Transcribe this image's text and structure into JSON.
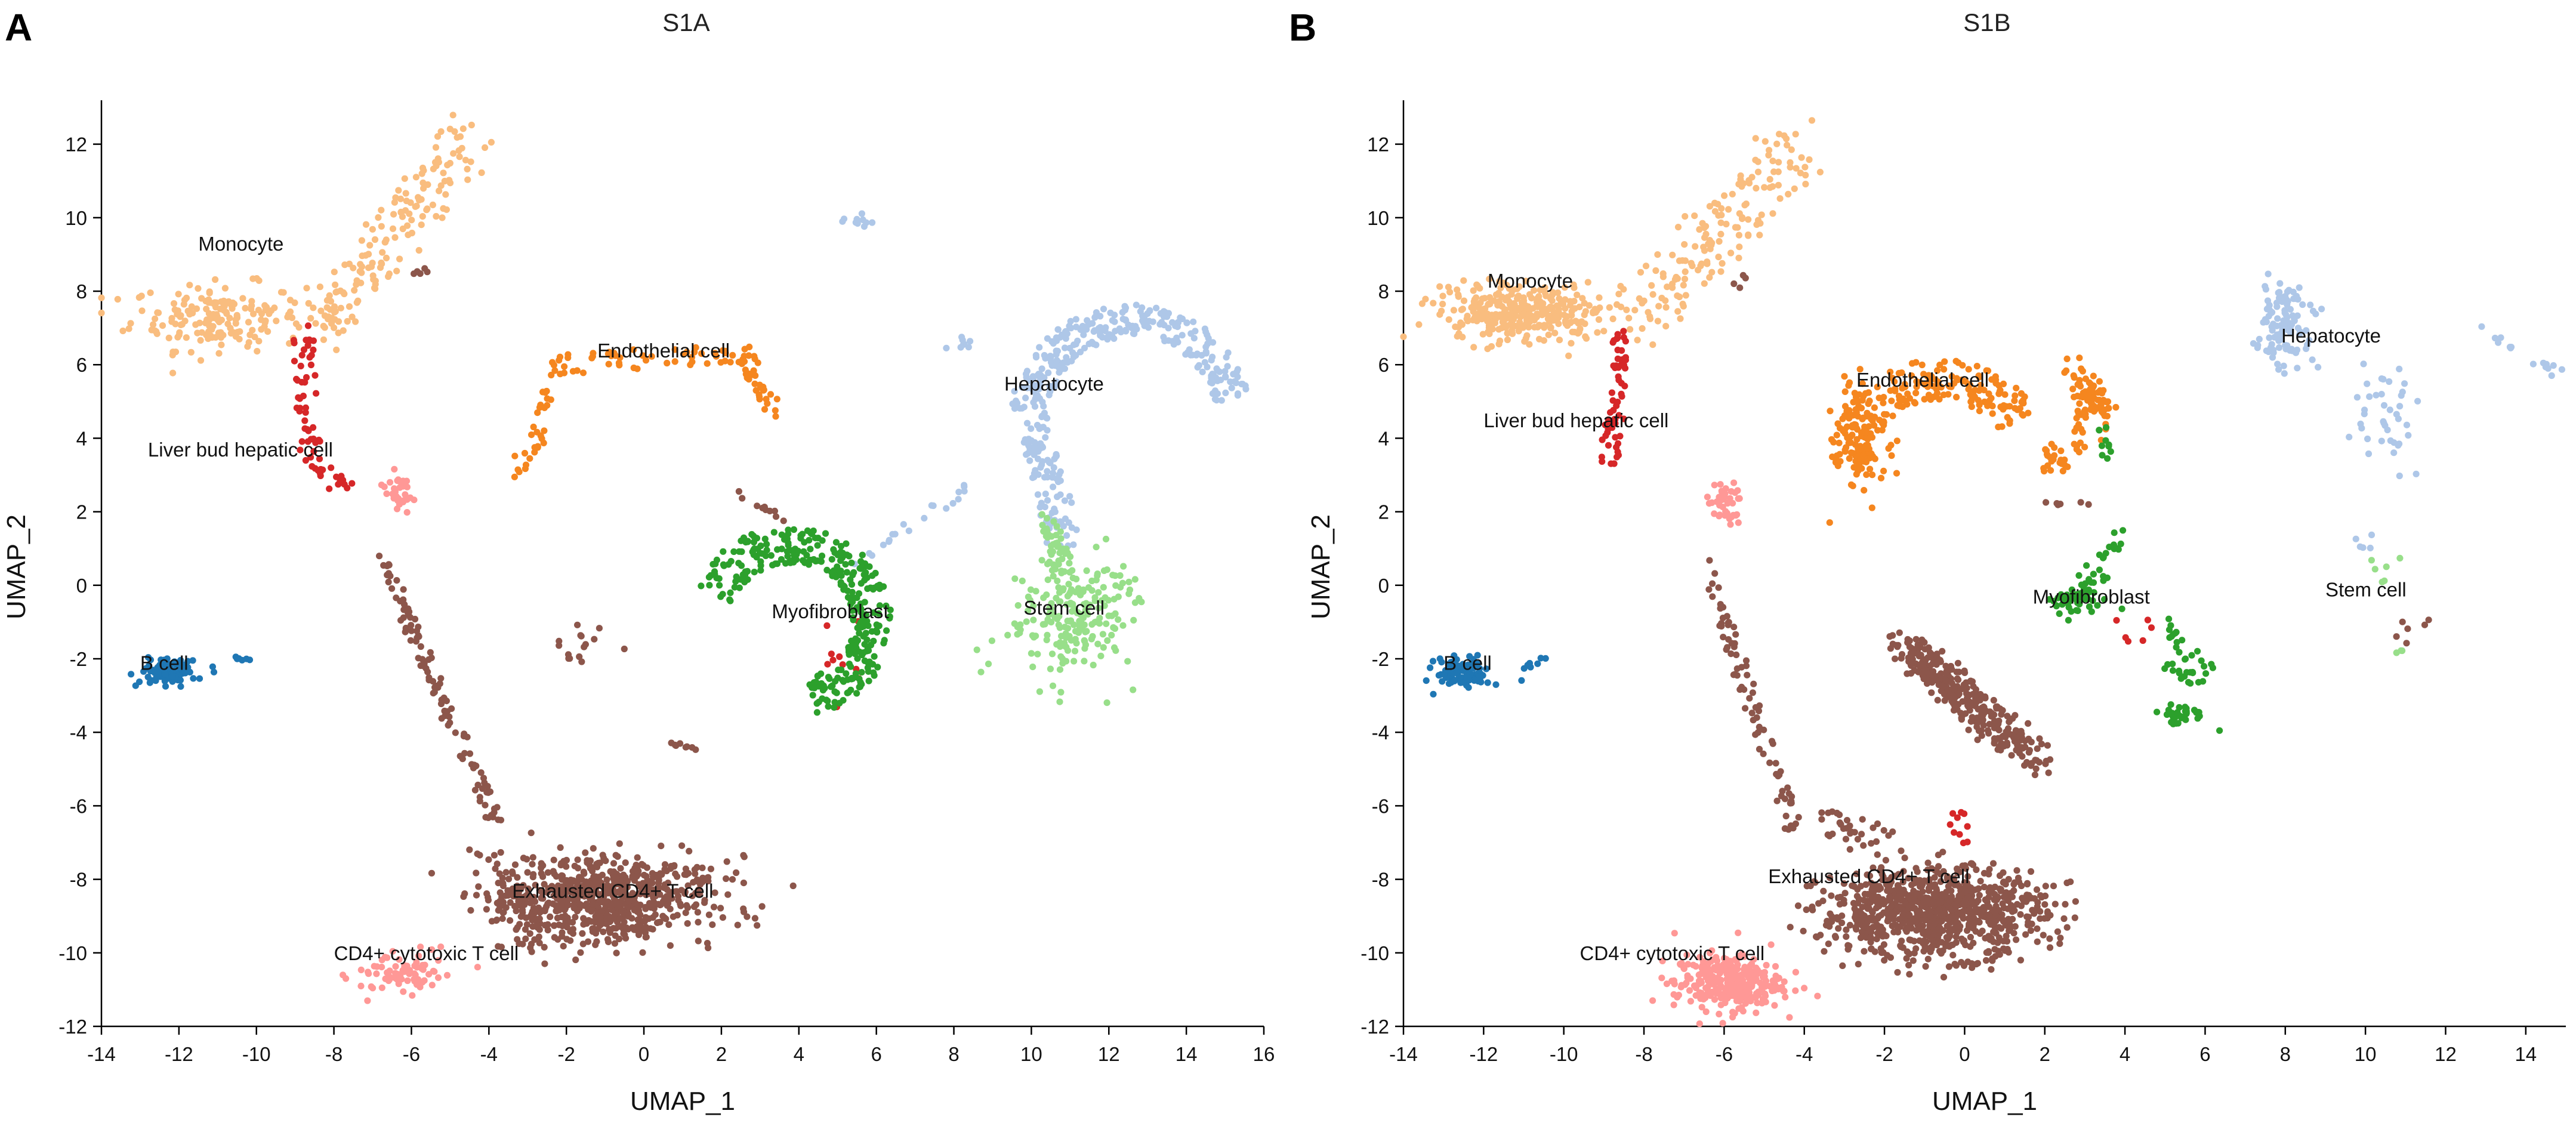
{
  "colors": {
    "Monocyte": "#f9bd7f",
    "Liver bud hepatic cell": "#d62728",
    "Endothelial cell": "#f5861f",
    "Hepatocyte": "#aec7e8",
    "Stem cell": "#98df8a",
    "Myofibroblast": "#2ca02c",
    "B cell": "#1f77b4",
    "Exhausted CD4+ T cell": "#8c564b",
    "CD4+ cytotoxic T cell": "#ff9896"
  },
  "chart_data": [
    {
      "id": "S1A",
      "panel_letter": "A",
      "type": "scatter",
      "title": "S1A",
      "xlabel": "UMAP_1",
      "ylabel": "UMAP_2",
      "xlim": [
        -14,
        16
      ],
      "ylim": [
        -12,
        13
      ],
      "xticks": [
        -14,
        -12,
        -10,
        -8,
        -6,
        -4,
        -2,
        0,
        2,
        4,
        6,
        8,
        10,
        12,
        14,
        16
      ],
      "yticks": [
        -12,
        -10,
        -8,
        -6,
        -4,
        -2,
        0,
        2,
        4,
        6,
        8,
        10,
        12
      ],
      "clusters": [
        {
          "name": "Monocyte",
          "label": "Monocyte",
          "label_xy": [
            -11.5,
            9.1
          ],
          "n": 340,
          "shapes": [
            {
              "kind": "line",
              "from": [
                -4.4,
                12.2
              ],
              "to": [
                -8.4,
                7.0
              ],
              "w": 0.8,
              "n": 160
            },
            {
              "kind": "blob",
              "cx": -11.0,
              "cy": 7.3,
              "sx": 1.5,
              "sy": 0.6,
              "n": 180
            }
          ]
        },
        {
          "name": "Liver bud hepatic cell",
          "label": "Liver bud hepatic cell",
          "label_xy": [
            -12.8,
            3.5
          ],
          "n": 75,
          "shapes": [
            {
              "kind": "line",
              "from": [
                -8.8,
                7.0
              ],
              "to": [
                -8.6,
                3.5
              ],
              "w": 0.35,
              "n": 45
            },
            {
              "kind": "line",
              "from": [
                -8.8,
                3.5
              ],
              "to": [
                -7.5,
                2.5
              ],
              "w": 0.3,
              "n": 20
            },
            {
              "kind": "blob",
              "cx": 5.0,
              "cy": -2.2,
              "sx": 0.5,
              "sy": 0.9,
              "n": 10
            }
          ]
        },
        {
          "name": "Endothelial cell",
          "label": "Endothelial cell",
          "label_xy": [
            -1.2,
            6.2
          ],
          "n": 120,
          "shapes": [
            {
              "kind": "line",
              "from": [
                -3.2,
                3.0
              ],
              "to": [
                -2.2,
                5.9
              ],
              "w": 0.3,
              "n": 35
            },
            {
              "kind": "line",
              "from": [
                -2.2,
                6.0
              ],
              "to": [
                2.6,
                6.3
              ],
              "w": 0.35,
              "n": 50
            },
            {
              "kind": "line",
              "from": [
                2.6,
                6.3
              ],
              "to": [
                3.3,
                4.8
              ],
              "w": 0.3,
              "n": 35
            }
          ]
        },
        {
          "name": "Hepatocyte",
          "label": "Hepatocyte",
          "label_xy": [
            9.3,
            5.3
          ],
          "n": 430,
          "shapes": [
            {
              "kind": "arc",
              "cx": 12.6,
              "cy": 4.6,
              "r": 2.6,
              "a0": 10,
              "a1": 165,
              "w": 0.45,
              "n": 260
            },
            {
              "kind": "line",
              "from": [
                9.8,
                5.2
              ],
              "to": [
                10.8,
                1.3
              ],
              "w": 0.55,
              "n": 120
            },
            {
              "kind": "line",
              "from": [
                8.3,
                2.6
              ],
              "to": [
                5.5,
                0.6
              ],
              "w": 0.18,
              "n": 20
            },
            {
              "kind": "blob",
              "cx": 5.5,
              "cy": 9.9,
              "sx": 0.25,
              "sy": 0.15,
              "n": 12
            },
            {
              "kind": "blob",
              "cx": 8.5,
              "cy": 6.6,
              "sx": 0.5,
              "sy": 0.2,
              "n": 8
            }
          ]
        },
        {
          "name": "Stem cell",
          "label": "Stem cell",
          "label_xy": [
            9.8,
            -0.8
          ],
          "n": 250,
          "shapes": [
            {
              "kind": "blob",
              "cx": 11.0,
              "cy": -0.8,
              "sx": 0.95,
              "sy": 1.15,
              "n": 200
            },
            {
              "kind": "line",
              "from": [
                10.5,
                1.8
              ],
              "to": [
                10.8,
                0.3
              ],
              "w": 0.35,
              "n": 40
            },
            {
              "kind": "line",
              "from": [
                11.8,
                0.5
              ],
              "to": [
                13.0,
                -0.6
              ],
              "w": 0.25,
              "n": 10
            }
          ]
        },
        {
          "name": "Myofibroblast",
          "label": "Myofibroblast",
          "label_xy": [
            3.3,
            -0.9
          ],
          "n": 330,
          "shapes": [
            {
              "kind": "arc",
              "cx": 3.8,
              "cy": -1.0,
              "r": 2.1,
              "a0": -75,
              "a1": 160,
              "w": 0.5,
              "n": 330
            }
          ]
        },
        {
          "name": "B cell",
          "label": "B cell",
          "label_xy": [
            -13.0,
            -2.3
          ],
          "n": 110,
          "shapes": [
            {
              "kind": "blob",
              "cx": -12.3,
              "cy": -2.35,
              "sx": 0.48,
              "sy": 0.25,
              "n": 100
            },
            {
              "kind": "blob",
              "cx": -10.3,
              "cy": -2.0,
              "sx": 0.2,
              "sy": 0.06,
              "n": 6
            }
          ]
        },
        {
          "name": "Exhausted CD4+ T cell",
          "label": "Exhausted CD4+ T cell",
          "label_xy": [
            -3.4,
            -8.5
          ],
          "n": 900,
          "shapes": [
            {
              "kind": "blob",
              "cx": -1.0,
              "cy": -8.5,
              "sx": 1.9,
              "sy": 0.75,
              "n": 680
            },
            {
              "kind": "line",
              "from": [
                -6.8,
                0.8
              ],
              "to": [
                -3.8,
                -6.5
              ],
              "w": 0.22,
              "n": 110
            },
            {
              "kind": "line",
              "from": [
                -4.3,
                -7.0
              ],
              "to": [
                -2.6,
                -10.0
              ],
              "w": 0.6,
              "n": 50
            },
            {
              "kind": "blob",
              "cx": -1.6,
              "cy": -1.6,
              "sx": 0.6,
              "sy": 0.4,
              "n": 15
            },
            {
              "kind": "line",
              "from": [
                0.5,
                -4.2
              ],
              "to": [
                1.6,
                -4.5
              ],
              "w": 0.15,
              "n": 8
            },
            {
              "kind": "line",
              "from": [
                2.4,
                2.5
              ],
              "to": [
                3.6,
                1.8
              ],
              "w": 0.12,
              "n": 10
            },
            {
              "kind": "blob",
              "cx": -5.8,
              "cy": 8.5,
              "sx": 0.15,
              "sy": 0.15,
              "n": 5
            }
          ]
        },
        {
          "name": "CD4+ cytotoxic T cell",
          "label": "CD4+ cytotoxic T cell",
          "label_xy": [
            -8.0,
            -10.2
          ],
          "n": 110,
          "shapes": [
            {
              "kind": "blob",
              "cx": -6.3,
              "cy": -10.6,
              "sx": 0.7,
              "sy": 0.35,
              "n": 75
            },
            {
              "kind": "blob",
              "cx": -6.3,
              "cy": 2.5,
              "sx": 0.25,
              "sy": 0.35,
              "n": 35
            }
          ]
        }
      ]
    },
    {
      "id": "S1B",
      "panel_letter": "B",
      "type": "scatter",
      "title": "S1B",
      "xlabel": "UMAP_1",
      "ylabel": "UMAP_2",
      "xlim": [
        -14,
        15
      ],
      "ylim": [
        -12,
        13
      ],
      "xticks": [
        -14,
        -12,
        -10,
        -8,
        -6,
        -4,
        -2,
        0,
        2,
        4,
        6,
        8,
        10,
        12,
        14
      ],
      "yticks": [
        -12,
        -10,
        -8,
        -6,
        -4,
        -2,
        0,
        2,
        4,
        6,
        8,
        10,
        12
      ],
      "clusters": [
        {
          "name": "Monocyte",
          "label": "Monocyte",
          "label_xy": [
            -11.9,
            8.1
          ],
          "n": 500,
          "shapes": [
            {
              "kind": "line",
              "from": [
                -4.0,
                12.1
              ],
              "to": [
                -8.4,
                7.2
              ],
              "w": 0.85,
              "n": 160
            },
            {
              "kind": "blob",
              "cx": -11.0,
              "cy": 7.4,
              "sx": 1.35,
              "sy": 0.5,
              "n": 340
            }
          ]
        },
        {
          "name": "Liver bud hepatic cell",
          "label": "Liver bud hepatic cell",
          "label_xy": [
            -12.0,
            4.3
          ],
          "n": 80,
          "shapes": [
            {
              "kind": "line",
              "from": [
                -8.5,
                7.0
              ],
              "to": [
                -8.9,
                3.0
              ],
              "w": 0.3,
              "n": 60
            },
            {
              "kind": "blob",
              "cx": -0.1,
              "cy": -6.6,
              "sx": 0.15,
              "sy": 0.35,
              "n": 10
            },
            {
              "kind": "blob",
              "cx": 4.3,
              "cy": -1.3,
              "sx": 0.6,
              "sy": 0.4,
              "n": 6
            }
          ]
        },
        {
          "name": "Endothelial cell",
          "label": "Endothelial cell",
          "label_xy": [
            -2.7,
            5.4
          ],
          "n": 430,
          "shapes": [
            {
              "kind": "arc",
              "cx": -0.6,
              "cy": 3.4,
              "r": 2.2,
              "a0": 30,
              "a1": 185,
              "w": 0.55,
              "n": 220
            },
            {
              "kind": "blob",
              "cx": -2.6,
              "cy": 4.0,
              "sx": 0.45,
              "sy": 1.1,
              "n": 90
            },
            {
              "kind": "arc",
              "cx": 1.9,
              "cy": 4.7,
              "r": 1.3,
              "a0": -90,
              "a1": 40,
              "w": 0.4,
              "n": 70
            },
            {
              "kind": "line",
              "from": [
                2.7,
                6.0
              ],
              "to": [
                3.6,
                4.5
              ],
              "w": 0.35,
              "n": 50
            }
          ]
        },
        {
          "name": "Hepatocyte",
          "label": "Hepatocyte",
          "label_xy": [
            7.9,
            6.6
          ],
          "n": 200,
          "shapes": [
            {
              "kind": "blob",
              "cx": 8.0,
              "cy": 7.1,
              "sx": 0.4,
              "sy": 0.75,
              "n": 110
            },
            {
              "kind": "blob",
              "cx": 10.4,
              "cy": 4.6,
              "sx": 0.6,
              "sy": 1.0,
              "n": 40
            },
            {
              "kind": "line",
              "from": [
                12.8,
                7.0
              ],
              "to": [
                14.8,
                5.8
              ],
              "w": 0.2,
              "n": 15
            },
            {
              "kind": "blob",
              "cx": 9.9,
              "cy": 1.2,
              "sx": 0.2,
              "sy": 0.3,
              "n": 5
            }
          ]
        },
        {
          "name": "Stem cell",
          "label": "Stem cell",
          "label_xy": [
            9.0,
            -0.3
          ],
          "n": 10,
          "shapes": [
            {
              "kind": "blob",
              "cx": 10.5,
              "cy": 0.5,
              "sx": 0.35,
              "sy": 0.4,
              "n": 6
            },
            {
              "kind": "blob",
              "cx": 10.9,
              "cy": -1.8,
              "sx": 0.15,
              "sy": 0.1,
              "n": 3
            }
          ]
        },
        {
          "name": "Myofibroblast",
          "label": "Myofibroblast",
          "label_xy": [
            1.7,
            -0.5
          ],
          "n": 150,
          "shapes": [
            {
              "kind": "line",
              "from": [
                3.4,
                4.3
              ],
              "to": [
                3.6,
                3.3
              ],
              "w": 0.15,
              "n": 10
            },
            {
              "kind": "line",
              "from": [
                3.8,
                1.3
              ],
              "to": [
                2.8,
                -0.5
              ],
              "w": 0.35,
              "n": 40
            },
            {
              "kind": "blob",
              "cx": 2.7,
              "cy": -0.5,
              "sx": 0.6,
              "sy": 0.25,
              "n": 30
            },
            {
              "kind": "line",
              "from": [
                5.2,
                -0.9
              ],
              "to": [
                5.3,
                -1.8
              ],
              "w": 0.2,
              "n": 12
            },
            {
              "kind": "blob",
              "cx": 5.6,
              "cy": -2.4,
              "sx": 0.35,
              "sy": 0.4,
              "n": 25
            },
            {
              "kind": "blob",
              "cx": 5.4,
              "cy": -3.5,
              "sx": 0.5,
              "sy": 0.2,
              "n": 33
            }
          ]
        },
        {
          "name": "B cell",
          "label": "B cell",
          "label_xy": [
            -13.0,
            -2.3
          ],
          "n": 95,
          "shapes": [
            {
              "kind": "blob",
              "cx": -12.5,
              "cy": -2.4,
              "sx": 0.45,
              "sy": 0.28,
              "n": 85
            },
            {
              "kind": "line",
              "from": [
                -11.0,
                -2.2
              ],
              "to": [
                -10.5,
                -2.0
              ],
              "w": 0.1,
              "n": 8
            }
          ]
        },
        {
          "name": "Exhausted CD4+ T cell",
          "label": "Exhausted CD4+ T cell",
          "label_xy": [
            -4.9,
            -8.1
          ],
          "n": 1400,
          "shapes": [
            {
              "kind": "blob",
              "cx": -0.8,
              "cy": -8.9,
              "sx": 1.85,
              "sy": 0.8,
              "n": 900
            },
            {
              "kind": "line",
              "from": [
                -1.5,
                -1.6
              ],
              "to": [
                1.8,
                -4.8
              ],
              "w": 0.55,
              "n": 320
            },
            {
              "kind": "line",
              "from": [
                -6.5,
                0.6
              ],
              "to": [
                -4.2,
                -6.8
              ],
              "w": 0.25,
              "n": 80
            },
            {
              "kind": "line",
              "from": [
                -3.5,
                -6.4
              ],
              "to": [
                -2.0,
                -6.9
              ],
              "w": 0.4,
              "n": 30
            },
            {
              "kind": "blob",
              "cx": 2.5,
              "cy": 2.2,
              "sx": 0.3,
              "sy": 0.1,
              "n": 6
            },
            {
              "kind": "blob",
              "cx": 11.0,
              "cy": -1.2,
              "sx": 0.4,
              "sy": 0.5,
              "n": 6
            },
            {
              "kind": "blob",
              "cx": -5.7,
              "cy": 8.3,
              "sx": 0.3,
              "sy": 0.2,
              "n": 4
            }
          ]
        },
        {
          "name": "CD4+ cytotoxic T cell",
          "label": "CD4+ cytotoxic T cell",
          "label_xy": [
            -9.6,
            -10.2
          ],
          "n": 350,
          "shapes": [
            {
              "kind": "blob",
              "cx": -5.9,
              "cy": -10.8,
              "sx": 0.9,
              "sy": 0.5,
              "n": 310
            },
            {
              "kind": "blob",
              "cx": -6.0,
              "cy": 2.2,
              "sx": 0.3,
              "sy": 0.4,
              "n": 40
            }
          ]
        }
      ]
    }
  ]
}
